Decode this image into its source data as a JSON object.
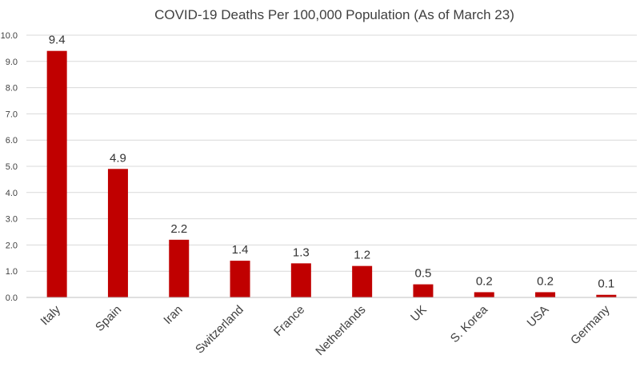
{
  "chart_data": {
    "type": "bar",
    "title": "COVID-19 Deaths Per 100,000 Population (As of March 23)",
    "xlabel": "",
    "ylabel": "",
    "categories": [
      "Italy",
      "Spain",
      "Iran",
      "Switzerland",
      "France",
      "Netherlands",
      "UK",
      "S. Korea",
      "USA",
      "Germany"
    ],
    "series": [
      {
        "name": "Deaths per 100,000",
        "values": [
          9.4,
          4.9,
          2.2,
          1.4,
          1.3,
          1.2,
          0.5,
          0.2,
          0.2,
          0.1
        ],
        "data_labels": [
          "9.4",
          "4.9",
          "2.2",
          "1.4",
          "1.3",
          "1.2",
          "0.5",
          "0.2",
          "0.2",
          "0.1"
        ]
      }
    ],
    "ylim": [
      0,
      10
    ],
    "yticks": [
      0,
      1,
      2,
      3,
      4,
      5,
      6,
      7,
      8,
      9,
      10
    ],
    "ytick_labels": [
      "0.0",
      "1.0",
      "2.0",
      "3.0",
      "4.0",
      "5.0",
      "6.0",
      "7.0",
      "8.0",
      "9.0",
      "10.0"
    ],
    "grid": true,
    "legend": "none",
    "colors": {
      "bar": "#c00000",
      "grid": "#d9d9d9",
      "text": "#404040"
    }
  }
}
